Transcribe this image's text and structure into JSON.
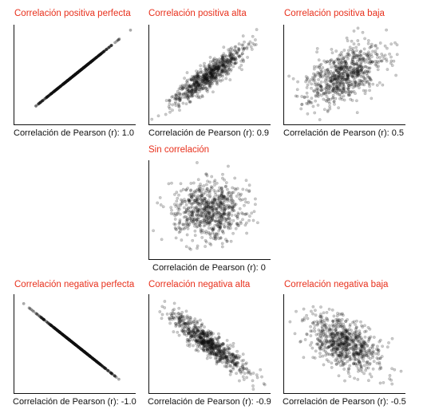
{
  "colors": {
    "title": "#e8301c",
    "point": "#111111",
    "axis": "#111111",
    "caption": "#111111"
  },
  "chart_data": [
    {
      "type": "scatter",
      "title": "Correlación positiva perfecta",
      "caption_prefix": "Correlación de Pearson (r):",
      "r_label": "1.0",
      "r": 1.0,
      "grid": false
    },
    {
      "type": "scatter",
      "title": "Correlación positiva alta",
      "caption_prefix": "Correlación de Pearson (r):",
      "r_label": "0.9",
      "r": 0.9,
      "grid": false
    },
    {
      "type": "scatter",
      "title": "Correlación positiva baja",
      "caption_prefix": "Correlación de Pearson (r):",
      "r_label": "0.5",
      "r": 0.5,
      "grid": false
    },
    {
      "type": "scatter",
      "title": "Sin correlación",
      "caption_prefix": "Correlación de Pearson (r):",
      "r_label": "0",
      "r": 0.0,
      "grid": false
    },
    {
      "type": "scatter",
      "title": "Correlación negativa perfecta",
      "caption_prefix": "Correlación de Pearson (r):",
      "r_label": "-1.0",
      "r": -1.0,
      "grid": false
    },
    {
      "type": "scatter",
      "title": "Correlación negativa alta",
      "caption_prefix": "Correlación de Pearson (r):",
      "r_label": "-0.9",
      "r": -0.9,
      "grid": false
    },
    {
      "type": "scatter",
      "title": "Correlación negativa baja",
      "caption_prefix": "Correlación de Pearson (r):",
      "r_label": "-0.5",
      "r": -0.5,
      "grid": false
    }
  ]
}
